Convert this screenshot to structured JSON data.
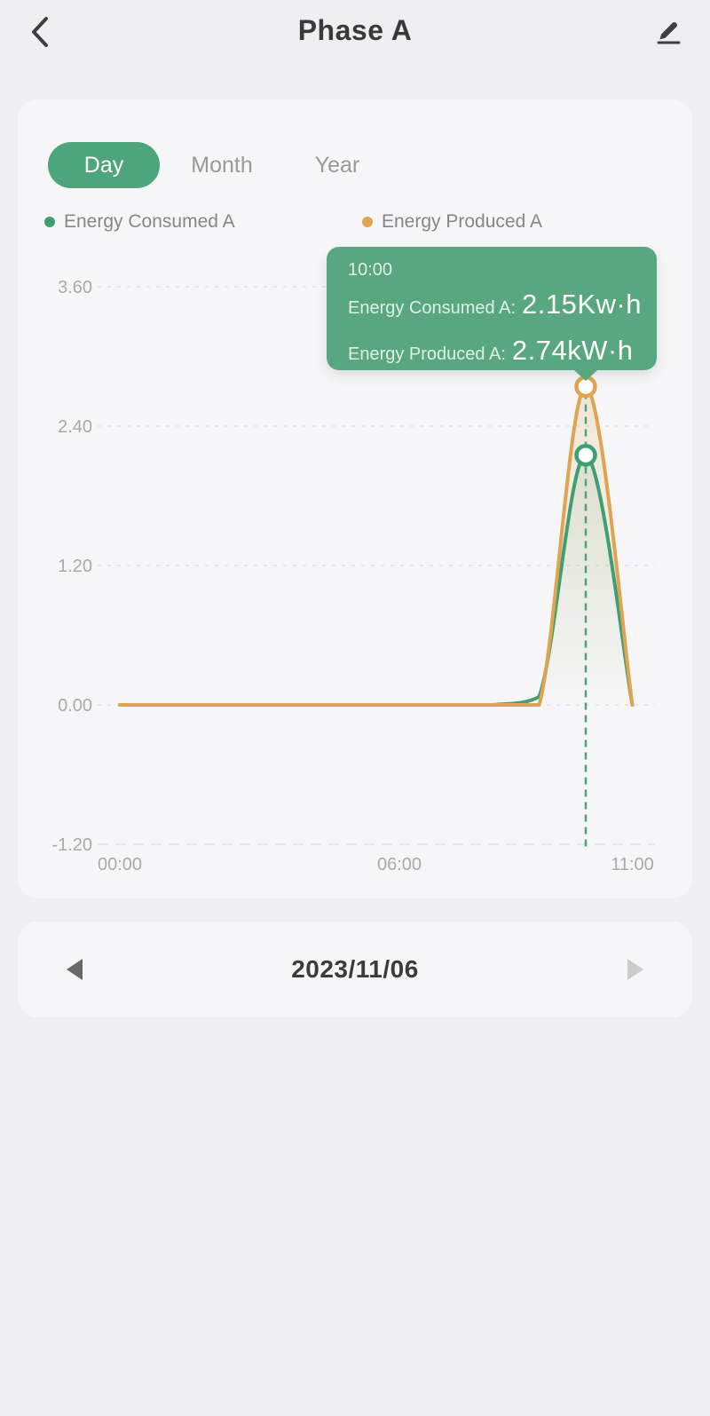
{
  "header": {
    "title": "Phase A"
  },
  "icons": {
    "back": "chevron-left",
    "edit": "pencil-underline",
    "prev": "triangle-left",
    "next": "triangle-right"
  },
  "tabs": {
    "items": [
      {
        "label": "Day",
        "selected": true
      },
      {
        "label": "Month",
        "selected": false
      },
      {
        "label": "Year",
        "selected": false
      }
    ]
  },
  "legend": {
    "items": [
      {
        "label": "Energy Consumed A",
        "color": "#3f9e72"
      },
      {
        "label": "Energy Produced A",
        "color": "#e0a44f"
      }
    ]
  },
  "tooltip": {
    "time": "10:00",
    "consumed_label": "Energy Consumed A:",
    "consumed_value": "2.15Kw·h",
    "produced_label": "Energy Produced A:",
    "produced_value": "2.74kW·h"
  },
  "date_nav": {
    "date": "2023/11/06",
    "prev_enabled": true,
    "next_enabled": false
  },
  "colors": {
    "accent_green": "#4ea57c",
    "tooltip_bg": "#58a77f",
    "line_green": "#3f9e72",
    "line_orange": "#dfa351",
    "grid": "#e1e1e4",
    "cursor_dash": "#4aa37a"
  },
  "chart_data": {
    "type": "area",
    "title": "",
    "xlabel": "",
    "ylabel": "",
    "x": [
      0,
      1,
      2,
      3,
      4,
      5,
      6,
      7,
      8,
      9,
      10,
      11
    ],
    "series": [
      {
        "name": "Energy Consumed A",
        "color": "#3f9e72",
        "values": [
          0,
          0,
          0,
          0,
          0,
          0,
          0,
          0,
          0,
          0.07,
          2.15,
          0
        ]
      },
      {
        "name": "Energy Produced A",
        "color": "#dfa351",
        "values": [
          0,
          0,
          0,
          0,
          0,
          0,
          0,
          0,
          0,
          0,
          2.74,
          0
        ]
      }
    ],
    "yticks": [
      {
        "v": 3.6,
        "label": "3.60"
      },
      {
        "v": 2.4,
        "label": "2.40"
      },
      {
        "v": 1.2,
        "label": "1.20"
      },
      {
        "v": 0.0,
        "label": "0.00"
      },
      {
        "v": -1.2,
        "label": "-1.20"
      }
    ],
    "xticks": [
      {
        "h": 0,
        "label": "00:00"
      },
      {
        "h": 6,
        "label": "06:00"
      },
      {
        "h": 11,
        "label": "11:00"
      }
    ],
    "ylim": [
      -1.2,
      3.6
    ],
    "grid": "dotted",
    "legend_position": "top",
    "smooth": true,
    "highlight_hour": 10
  }
}
